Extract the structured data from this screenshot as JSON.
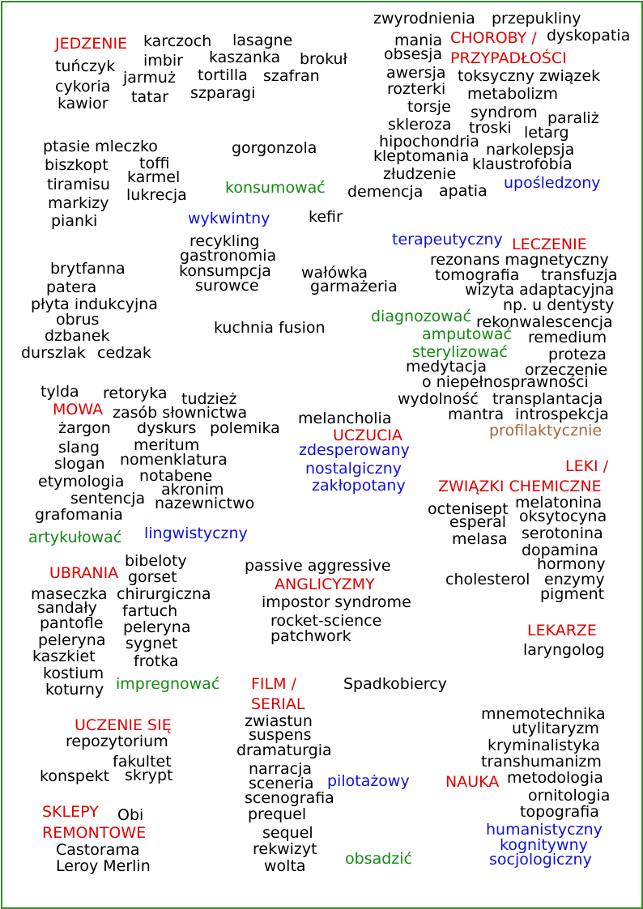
{
  "colors": {
    "black": "#000000",
    "red": "#e00000",
    "blue": "#1010dd",
    "green": "#128a12",
    "brown": "#a5683a",
    "border": "#2e8b2e"
  },
  "words": [
    {
      "t": "JEDZENIE",
      "c": "red"
    },
    {
      "t": "karczoch",
      "c": "black"
    },
    {
      "t": "lasagne",
      "c": "black"
    },
    {
      "t": "tuńczyk",
      "c": "black"
    },
    {
      "t": "imbir",
      "c": "black"
    },
    {
      "t": "kaszanka",
      "c": "black"
    },
    {
      "t": "brokuł",
      "c": "black"
    },
    {
      "t": "cykoria",
      "c": "black"
    },
    {
      "t": "jarmuż",
      "c": "black"
    },
    {
      "t": "tortilla",
      "c": "black"
    },
    {
      "t": "szafran",
      "c": "black"
    },
    {
      "t": "kawior",
      "c": "black"
    },
    {
      "t": "tatar",
      "c": "black"
    },
    {
      "t": "szparagi",
      "c": "black"
    },
    {
      "t": "zwyrodnienia",
      "c": "black"
    },
    {
      "t": "przepukliny",
      "c": "black"
    },
    {
      "t": "mania",
      "c": "black"
    },
    {
      "t": "CHOROBY /",
      "c": "red"
    },
    {
      "t": "dyskopatia",
      "c": "black"
    },
    {
      "t": "obsesja",
      "c": "black"
    },
    {
      "t": "PRZYPADŁOŚCI",
      "c": "red"
    },
    {
      "t": "awersja",
      "c": "black"
    },
    {
      "t": "toksyczny związek",
      "c": "black"
    },
    {
      "t": "rozterki",
      "c": "black"
    },
    {
      "t": "metabolizm",
      "c": "black"
    },
    {
      "t": "torsje",
      "c": "black"
    },
    {
      "t": "syndrom",
      "c": "black"
    },
    {
      "t": "paraliż",
      "c": "black"
    },
    {
      "t": "skleroza",
      "c": "black"
    },
    {
      "t": "troski",
      "c": "black"
    },
    {
      "t": "letarg",
      "c": "black"
    },
    {
      "t": "hipochondria",
      "c": "black"
    },
    {
      "t": "narkolepsja",
      "c": "black"
    },
    {
      "t": "kleptomania",
      "c": "black"
    },
    {
      "t": "klaustrofobia",
      "c": "black"
    },
    {
      "t": "złudzenie",
      "c": "black"
    },
    {
      "t": "upośledzony",
      "c": "blue"
    },
    {
      "t": "demencja",
      "c": "black"
    },
    {
      "t": "apatia",
      "c": "black"
    },
    {
      "t": "ptasie mleczko",
      "c": "black"
    },
    {
      "t": "gorgonzola",
      "c": "black"
    },
    {
      "t": "biszkopt",
      "c": "black"
    },
    {
      "t": "toffi",
      "c": "black"
    },
    {
      "t": "karmel",
      "c": "black"
    },
    {
      "t": "tiramisu",
      "c": "black"
    },
    {
      "t": "konsumować",
      "c": "green"
    },
    {
      "t": "markizy",
      "c": "black"
    },
    {
      "t": "lukrecja",
      "c": "black"
    },
    {
      "t": "pianki",
      "c": "black"
    },
    {
      "t": "wykwintny",
      "c": "blue"
    },
    {
      "t": "kefir",
      "c": "black"
    },
    {
      "t": "recykling",
      "c": "black"
    },
    {
      "t": "terapeutyczny",
      "c": "blue"
    },
    {
      "t": "LECZENIE",
      "c": "red"
    },
    {
      "t": "gastronomia",
      "c": "black"
    },
    {
      "t": "rezonans magnetyczny",
      "c": "black"
    },
    {
      "t": "brytfanna",
      "c": "black"
    },
    {
      "t": "konsumpcja",
      "c": "black"
    },
    {
      "t": "wałówka",
      "c": "black"
    },
    {
      "t": "tomografia",
      "c": "black"
    },
    {
      "t": "transfuzja",
      "c": "black"
    },
    {
      "t": "patera",
      "c": "black"
    },
    {
      "t": "surowce",
      "c": "black"
    },
    {
      "t": "garmażeria",
      "c": "black"
    },
    {
      "t": "wizyta adaptacyjna",
      "c": "black"
    },
    {
      "t": "płyta indukcyjna",
      "c": "black"
    },
    {
      "t": "np. u dentysty",
      "c": "black"
    },
    {
      "t": "diagnozować",
      "c": "green"
    },
    {
      "t": "obrus",
      "c": "black"
    },
    {
      "t": "rekonwalescencja",
      "c": "black"
    },
    {
      "t": "kuchnia fusion",
      "c": "black"
    },
    {
      "t": "amputować",
      "c": "green"
    },
    {
      "t": "dzbanek",
      "c": "black"
    },
    {
      "t": "remedium",
      "c": "black"
    },
    {
      "t": "durszlak",
      "c": "black"
    },
    {
      "t": "cedzak",
      "c": "black"
    },
    {
      "t": "sterylizować",
      "c": "green"
    },
    {
      "t": "proteza",
      "c": "black"
    },
    {
      "t": "medytacja",
      "c": "black"
    },
    {
      "t": "orzeczenie",
      "c": "black"
    },
    {
      "t": "o niepełnosprawności",
      "c": "black"
    },
    {
      "t": "tylda",
      "c": "black"
    },
    {
      "t": "retoryka",
      "c": "black"
    },
    {
      "t": "tudzież",
      "c": "black"
    },
    {
      "t": "wydolność",
      "c": "black"
    },
    {
      "t": "transplantacja",
      "c": "black"
    },
    {
      "t": "MOWA",
      "c": "red"
    },
    {
      "t": "zasób słownictwa",
      "c": "black"
    },
    {
      "t": "mantra",
      "c": "black"
    },
    {
      "t": "introspekcja",
      "c": "black"
    },
    {
      "t": "melancholia",
      "c": "black"
    },
    {
      "t": "żargon",
      "c": "black"
    },
    {
      "t": "dyskurs",
      "c": "black"
    },
    {
      "t": "polemika",
      "c": "black"
    },
    {
      "t": "profilaktycznie",
      "c": "brown"
    },
    {
      "t": "UCZUCIA",
      "c": "red"
    },
    {
      "t": "meritum",
      "c": "black"
    },
    {
      "t": "slang",
      "c": "black"
    },
    {
      "t": "zdesperowany",
      "c": "blue"
    },
    {
      "t": "nomenklatura",
      "c": "black"
    },
    {
      "t": "slogan",
      "c": "black"
    },
    {
      "t": "nostalgiczny",
      "c": "blue"
    },
    {
      "t": "LEKI /",
      "c": "red"
    },
    {
      "t": "notabene",
      "c": "black"
    },
    {
      "t": "etymologia",
      "c": "black"
    },
    {
      "t": "zakłopotany",
      "c": "blue"
    },
    {
      "t": "akronim",
      "c": "black"
    },
    {
      "t": "ZWIĄZKI CHEMICZNE",
      "c": "red"
    },
    {
      "t": "sentencja",
      "c": "black"
    },
    {
      "t": "nazewnictwo",
      "c": "black"
    },
    {
      "t": "melatonina",
      "c": "black"
    },
    {
      "t": "octenisept",
      "c": "black"
    },
    {
      "t": "grafomania",
      "c": "black"
    },
    {
      "t": "oksytocyna",
      "c": "black"
    },
    {
      "t": "esperal",
      "c": "black"
    },
    {
      "t": "lingwistyczny",
      "c": "blue"
    },
    {
      "t": "serotonina",
      "c": "black"
    },
    {
      "t": "artykułować",
      "c": "green"
    },
    {
      "t": "melasa",
      "c": "black"
    },
    {
      "t": "dopamina",
      "c": "black"
    },
    {
      "t": "bibeloty",
      "c": "black"
    },
    {
      "t": "hormony",
      "c": "black"
    },
    {
      "t": "passive aggressive",
      "c": "black"
    },
    {
      "t": "UBRANIA",
      "c": "red"
    },
    {
      "t": "gorset",
      "c": "black"
    },
    {
      "t": "cholesterol",
      "c": "black"
    },
    {
      "t": "enzymy",
      "c": "black"
    },
    {
      "t": "ANGLICYZMY",
      "c": "red"
    },
    {
      "t": "maseczka",
      "c": "black"
    },
    {
      "t": "chirurgiczna",
      "c": "black"
    },
    {
      "t": "pigment",
      "c": "black"
    },
    {
      "t": "impostor syndrome",
      "c": "black"
    },
    {
      "t": "sandały",
      "c": "black"
    },
    {
      "t": "fartuch",
      "c": "black"
    },
    {
      "t": "pantofle",
      "c": "black"
    },
    {
      "t": "rocket-science",
      "c": "black"
    },
    {
      "t": "peleryna",
      "c": "black"
    },
    {
      "t": "LEKARZE",
      "c": "red"
    },
    {
      "t": "peleryna",
      "c": "black"
    },
    {
      "t": "patchwork",
      "c": "black"
    },
    {
      "t": "sygnet",
      "c": "black"
    },
    {
      "t": "laryngolog",
      "c": "black"
    },
    {
      "t": "kaszkiet",
      "c": "black"
    },
    {
      "t": "frotka",
      "c": "black"
    },
    {
      "t": "kostium",
      "c": "black"
    },
    {
      "t": "impregnować",
      "c": "green"
    },
    {
      "t": "FILM /",
      "c": "red"
    },
    {
      "t": "Spadkobiercy",
      "c": "black"
    },
    {
      "t": "koturny",
      "c": "black"
    },
    {
      "t": "SERIAL",
      "c": "red"
    },
    {
      "t": "mnemotechnika",
      "c": "black"
    },
    {
      "t": "UCZENIE SIĘ",
      "c": "red"
    },
    {
      "t": "zwiastun",
      "c": "black"
    },
    {
      "t": "utylitaryzm",
      "c": "black"
    },
    {
      "t": "suspens",
      "c": "black"
    },
    {
      "t": "repozytorium",
      "c": "black"
    },
    {
      "t": "kryminalistyka",
      "c": "black"
    },
    {
      "t": "dramaturgia",
      "c": "black"
    },
    {
      "t": "fakultet",
      "c": "black"
    },
    {
      "t": "transhumanizm",
      "c": "black"
    },
    {
      "t": "narracja",
      "c": "black"
    },
    {
      "t": "konspekt",
      "c": "black"
    },
    {
      "t": "skrypt",
      "c": "black"
    },
    {
      "t": "metodologia",
      "c": "black"
    },
    {
      "t": "NAUKA",
      "c": "red"
    },
    {
      "t": "sceneria",
      "c": "black"
    },
    {
      "t": "pilotażowy",
      "c": "blue"
    },
    {
      "t": "ornitologia",
      "c": "black"
    },
    {
      "t": "scenografia",
      "c": "black"
    },
    {
      "t": "SKLEPY",
      "c": "red"
    },
    {
      "t": "topografia",
      "c": "black"
    },
    {
      "t": "Obi",
      "c": "black"
    },
    {
      "t": "prequel",
      "c": "black"
    },
    {
      "t": "humanistyczny",
      "c": "blue"
    },
    {
      "t": "REMONTOWE",
      "c": "red"
    },
    {
      "t": "sequel",
      "c": "black"
    },
    {
      "t": "kognitywny",
      "c": "blue"
    },
    {
      "t": "Castorama",
      "c": "black"
    },
    {
      "t": "rekwizyt",
      "c": "black"
    },
    {
      "t": "obsadzić",
      "c": "green"
    },
    {
      "t": "socjologiczny",
      "c": "blue"
    },
    {
      "t": "Leroy Merlin",
      "c": "black"
    },
    {
      "t": "wolta",
      "c": "black"
    }
  ]
}
